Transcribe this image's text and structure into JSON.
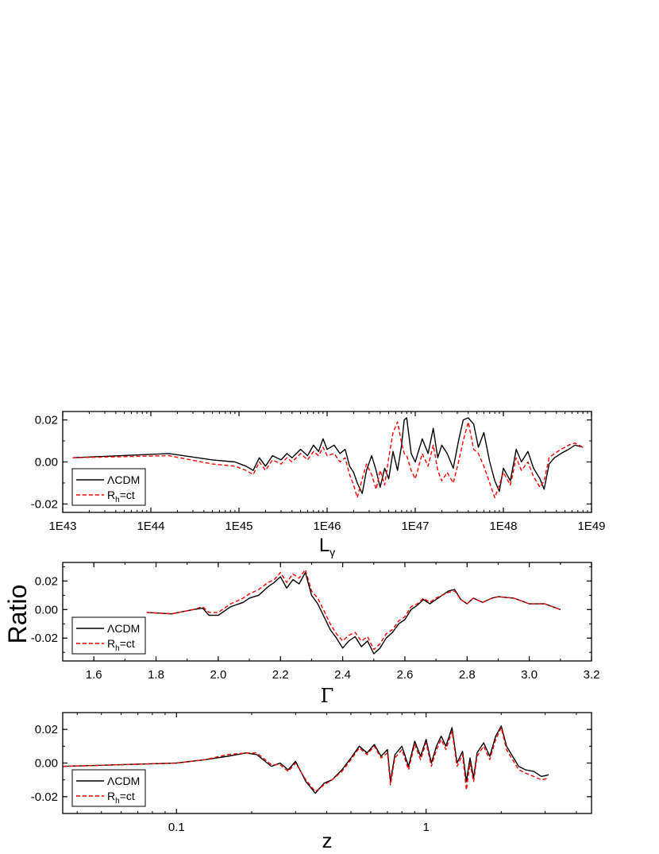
{
  "figure": {
    "shared_ylabel": "Ratio"
  },
  "colors": {
    "lcdm": "#000000",
    "rh": "#ff0000",
    "axis": "#000000"
  },
  "legend": {
    "lcdm_label": "ΛCDM",
    "rh_label_main": "R",
    "rh_label_sub": "h",
    "rh_label_rest": "=ct"
  },
  "chart_data": [
    {
      "type": "line",
      "xlabel": "L",
      "xlabel_sub": "γ",
      "xscale": "log",
      "xlim": [
        1e+43,
        1e+49
      ],
      "ylim": [
        -0.024,
        0.024
      ],
      "xticks": [
        1e+43,
        1e+44,
        1e+45,
        1e+46,
        1e+47,
        1e+48,
        1e+49
      ],
      "xtick_labels": [
        "1E43",
        "1E44",
        "1E45",
        "1E46",
        "1E47",
        "1E48",
        "1E49"
      ],
      "yticks": [
        -0.02,
        0.0,
        0.02
      ],
      "ytick_labels": [
        "-0.02",
        "0.00",
        "0.02"
      ],
      "legend_position": "bottom-left",
      "series": [
        {
          "name": "ΛCDM",
          "style": "solid",
          "x": [
            1.3e+43,
            1.6e+44,
            5e+44,
            9e+44,
            1.2e+45,
            1.45e+45,
            1.7e+45,
            2e+45,
            2.4e+45,
            3e+45,
            3.5e+45,
            4e+45,
            5e+45,
            6e+45,
            7e+45,
            8e+45,
            9e+45,
            1e+46,
            1.2e+46,
            1.4e+46,
            1.6e+46,
            1.8e+46,
            2e+46,
            2.2e+46,
            2.5e+46,
            2.8e+46,
            3.2e+46,
            3.6e+46,
            4e+46,
            4.5e+46,
            5e+46,
            5.6e+46,
            6.3e+46,
            7e+46,
            7.5e+46,
            8e+46,
            9e+46,
            1e+47,
            1.2e+47,
            1.4e+47,
            1.6e+47,
            1.8e+47,
            2e+47,
            2.3e+47,
            2.7e+47,
            3.1e+47,
            3.5e+47,
            4e+47,
            4.6e+47,
            5.2e+47,
            6e+47,
            7e+47,
            8e+47,
            9e+47,
            1e+48,
            1.2e+48,
            1.4e+48,
            1.6e+48,
            1.9e+48,
            2.2e+48,
            2.6e+48,
            2.9e+48,
            3.3e+48,
            3.8e+48,
            4.5e+48,
            5.5e+48,
            6.5e+48,
            8e+48
          ],
          "y": [
            0.002,
            0.004,
            0.001,
            0.0,
            -0.002,
            -0.004,
            0.002,
            -0.002,
            0.003,
            0.001,
            0.004,
            0.002,
            0.006,
            0.003,
            0.008,
            0.005,
            0.011,
            0.006,
            0.008,
            0.004,
            0.006,
            -0.002,
            -0.005,
            -0.01,
            -0.015,
            -0.004,
            0.003,
            -0.004,
            -0.012,
            -0.003,
            -0.008,
            0.005,
            -0.004,
            0.008,
            0.02,
            0.021,
            0.004,
            0.0,
            0.011,
            0.004,
            0.016,
            0.002,
            0.008,
            0.004,
            -0.003,
            0.01,
            0.02,
            0.021,
            0.018,
            0.007,
            0.014,
            0.0,
            -0.009,
            -0.014,
            -0.003,
            -0.009,
            0.006,
            0.0,
            0.005,
            -0.003,
            -0.008,
            -0.013,
            -0.001,
            0.002,
            0.004,
            0.006,
            0.008,
            0.007
          ]
        },
        {
          "name": "R_h=ct",
          "style": "dashed",
          "x": [
            1.3e+43,
            1.6e+44,
            5e+44,
            9e+44,
            1.2e+45,
            1.45e+45,
            1.7e+45,
            2e+45,
            2.4e+45,
            3e+45,
            3.5e+45,
            4e+45,
            5e+45,
            6e+45,
            7e+45,
            8e+45,
            9e+45,
            1e+46,
            1.2e+46,
            1.4e+46,
            1.6e+46,
            1.8e+46,
            2e+46,
            2.2e+46,
            2.5e+46,
            2.8e+46,
            3.2e+46,
            3.6e+46,
            4e+46,
            4.5e+46,
            5e+46,
            5.6e+46,
            6.3e+46,
            7e+46,
            7.5e+46,
            8e+46,
            9e+46,
            1e+47,
            1.2e+47,
            1.4e+47,
            1.6e+47,
            1.8e+47,
            2e+47,
            2.3e+47,
            2.7e+47,
            3.1e+47,
            3.5e+47,
            4e+47,
            4.6e+47,
            5.2e+47,
            6e+47,
            7e+47,
            8e+47,
            9e+47,
            1e+48,
            1.2e+48,
            1.4e+48,
            1.6e+48,
            1.9e+48,
            2.2e+48,
            2.6e+48,
            2.9e+48,
            3.3e+48,
            3.8e+48,
            4.5e+48,
            5.5e+48,
            6.5e+48,
            8e+48
          ],
          "y": [
            0.002,
            0.003,
            -0.001,
            -0.002,
            -0.004,
            -0.006,
            0.0,
            -0.004,
            0.001,
            -0.001,
            0.002,
            0.0,
            0.004,
            0.001,
            0.005,
            0.003,
            0.007,
            0.003,
            0.004,
            0.0,
            0.002,
            -0.006,
            -0.011,
            -0.017,
            -0.008,
            -0.001,
            -0.006,
            -0.013,
            -0.004,
            -0.011,
            0.002,
            0.014,
            0.019,
            0.009,
            0.004,
            0.003,
            -0.004,
            -0.008,
            0.004,
            -0.002,
            0.008,
            -0.004,
            -0.009,
            -0.005,
            -0.01,
            0.0,
            0.01,
            0.019,
            0.006,
            0.004,
            -0.002,
            -0.01,
            -0.017,
            -0.011,
            -0.005,
            -0.011,
            0.002,
            -0.004,
            0.0,
            -0.007,
            -0.012,
            -0.009,
            0.002,
            0.004,
            0.006,
            0.008,
            0.009,
            0.007
          ]
        }
      ]
    },
    {
      "type": "line",
      "xlabel": "Γ",
      "xscale": "linear",
      "xlim": [
        1.5,
        3.2
      ],
      "ylim": [
        -0.036,
        0.033
      ],
      "xticks": [
        1.6,
        1.8,
        2.0,
        2.2,
        2.4,
        2.6,
        2.8,
        3.0,
        3.2
      ],
      "xtick_labels": [
        "1.6",
        "1.8",
        "2.0",
        "2.2",
        "2.4",
        "2.6",
        "2.8",
        "3.0",
        "3.2"
      ],
      "yticks": [
        -0.02,
        0.0,
        0.02
      ],
      "ytick_labels": [
        "-0.02",
        "0.00",
        "0.02"
      ],
      "legend_position": "bottom-left",
      "series": [
        {
          "name": "ΛCDM",
          "style": "solid",
          "x": [
            1.77,
            1.85,
            1.92,
            1.95,
            1.97,
            2.0,
            2.04,
            2.08,
            2.1,
            2.13,
            2.16,
            2.18,
            2.2,
            2.22,
            2.24,
            2.26,
            2.28,
            2.3,
            2.32,
            2.34,
            2.36,
            2.38,
            2.4,
            2.42,
            2.44,
            2.46,
            2.48,
            2.5,
            2.52,
            2.54,
            2.56,
            2.58,
            2.6,
            2.62,
            2.64,
            2.66,
            2.68,
            2.7,
            2.72,
            2.74,
            2.76,
            2.78,
            2.8,
            2.82,
            2.85,
            2.88,
            2.9,
            2.95,
            3.0,
            3.05,
            3.1
          ],
          "y": [
            -0.002,
            -0.003,
            0.0,
            0.001,
            -0.004,
            -0.004,
            0.002,
            0.005,
            0.008,
            0.01,
            0.016,
            0.019,
            0.023,
            0.015,
            0.021,
            0.018,
            0.026,
            0.01,
            0.004,
            -0.005,
            -0.014,
            -0.02,
            -0.027,
            -0.022,
            -0.019,
            -0.026,
            -0.022,
            -0.031,
            -0.027,
            -0.02,
            -0.016,
            -0.01,
            -0.007,
            0.0,
            0.003,
            0.007,
            0.004,
            0.007,
            0.01,
            0.013,
            0.014,
            0.007,
            0.004,
            0.008,
            0.005,
            0.008,
            0.009,
            0.008,
            0.004,
            0.004,
            0.0
          ]
        },
        {
          "name": "R_h=ct",
          "style": "dashed",
          "x": [
            1.77,
            1.85,
            1.92,
            1.95,
            1.97,
            2.0,
            2.04,
            2.08,
            2.1,
            2.13,
            2.16,
            2.18,
            2.2,
            2.22,
            2.24,
            2.26,
            2.28,
            2.3,
            2.32,
            2.34,
            2.36,
            2.38,
            2.4,
            2.42,
            2.44,
            2.46,
            2.48,
            2.5,
            2.52,
            2.54,
            2.56,
            2.58,
            2.6,
            2.62,
            2.64,
            2.66,
            2.68,
            2.7,
            2.72,
            2.74,
            2.76,
            2.78,
            2.8,
            2.82,
            2.85,
            2.88,
            2.9,
            2.95,
            3.0,
            3.05,
            3.1
          ],
          "y": [
            -0.002,
            -0.003,
            0.0,
            0.002,
            -0.002,
            -0.002,
            0.004,
            0.008,
            0.011,
            0.014,
            0.019,
            0.021,
            0.026,
            0.019,
            0.025,
            0.022,
            0.028,
            0.013,
            0.008,
            -0.001,
            -0.01,
            -0.017,
            -0.022,
            -0.018,
            -0.016,
            -0.022,
            -0.019,
            -0.028,
            -0.024,
            -0.017,
            -0.014,
            -0.008,
            -0.005,
            0.002,
            0.004,
            0.008,
            0.005,
            0.008,
            0.01,
            0.012,
            0.013,
            0.007,
            0.004,
            0.008,
            0.005,
            0.008,
            0.009,
            0.008,
            0.004,
            0.004,
            0.0
          ]
        }
      ]
    },
    {
      "type": "line",
      "xlabel": "z",
      "xscale": "log",
      "xlim": [
        0.035,
        4.6
      ],
      "ylim": [
        -0.03,
        0.03
      ],
      "xticks": [
        0.1,
        1
      ],
      "xtick_labels": [
        "0.1",
        "1"
      ],
      "yticks": [
        -0.02,
        0.0,
        0.02
      ],
      "ytick_labels": [
        "-0.02",
        "0.00",
        "0.02"
      ],
      "legend_position": "bottom-left",
      "series": [
        {
          "name": "ΛCDM",
          "style": "solid",
          "x": [
            0.035,
            0.06,
            0.1,
            0.13,
            0.16,
            0.19,
            0.21,
            0.24,
            0.26,
            0.28,
            0.3,
            0.33,
            0.36,
            0.39,
            0.42,
            0.46,
            0.5,
            0.54,
            0.58,
            0.62,
            0.66,
            0.7,
            0.72,
            0.75,
            0.8,
            0.85,
            0.9,
            0.95,
            1.0,
            1.05,
            1.1,
            1.15,
            1.2,
            1.27,
            1.33,
            1.4,
            1.45,
            1.5,
            1.55,
            1.6,
            1.7,
            1.8,
            1.9,
            2.0,
            2.1,
            2.2,
            2.35,
            2.5,
            2.7,
            2.9,
            3.1
          ],
          "y": [
            -0.002,
            -0.001,
            0.0,
            0.002,
            0.004,
            0.006,
            0.005,
            -0.002,
            0.0,
            -0.004,
            0.001,
            -0.011,
            -0.018,
            -0.012,
            -0.01,
            -0.004,
            0.003,
            0.01,
            0.006,
            0.011,
            0.004,
            0.008,
            -0.011,
            0.005,
            0.01,
            -0.002,
            0.013,
            0.004,
            0.014,
            0.0,
            0.01,
            0.016,
            0.01,
            0.021,
            0.0,
            0.007,
            -0.011,
            0.003,
            -0.009,
            0.006,
            0.012,
            0.004,
            0.016,
            0.022,
            0.01,
            0.005,
            -0.002,
            -0.004,
            -0.005,
            -0.008,
            -0.007
          ]
        },
        {
          "name": "R_h=ct",
          "style": "dashed",
          "x": [
            0.035,
            0.06,
            0.1,
            0.13,
            0.16,
            0.19,
            0.21,
            0.24,
            0.26,
            0.28,
            0.3,
            0.33,
            0.36,
            0.39,
            0.42,
            0.46,
            0.5,
            0.54,
            0.58,
            0.62,
            0.66,
            0.7,
            0.72,
            0.75,
            0.8,
            0.85,
            0.9,
            0.95,
            1.0,
            1.05,
            1.1,
            1.15,
            1.2,
            1.27,
            1.33,
            1.4,
            1.45,
            1.5,
            1.55,
            1.6,
            1.7,
            1.8,
            1.9,
            2.0,
            2.1,
            2.2,
            2.35,
            2.5,
            2.7,
            2.9,
            3.1
          ],
          "y": [
            -0.002,
            -0.001,
            0.0,
            0.002,
            0.005,
            0.006,
            0.006,
            -0.001,
            -0.001,
            -0.005,
            0.0,
            -0.01,
            -0.017,
            -0.013,
            -0.01,
            -0.005,
            0.002,
            0.009,
            0.005,
            0.01,
            0.003,
            0.006,
            -0.013,
            0.003,
            0.008,
            -0.004,
            0.011,
            0.002,
            0.012,
            -0.002,
            0.008,
            0.014,
            0.008,
            0.019,
            -0.002,
            0.005,
            -0.016,
            0.0,
            -0.011,
            0.004,
            0.01,
            0.002,
            0.014,
            0.021,
            0.008,
            0.003,
            -0.004,
            -0.006,
            -0.008,
            -0.01,
            -0.009
          ]
        }
      ]
    }
  ]
}
